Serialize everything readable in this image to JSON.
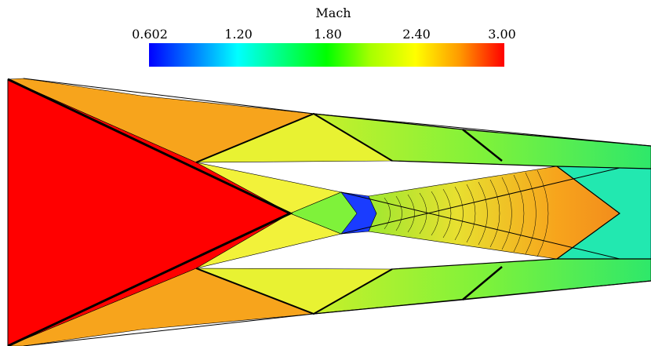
{
  "chart_data": {
    "type": "heatmap",
    "title": "",
    "colorbar": {
      "label": "Mach",
      "min": 0.602,
      "max": 3.0,
      "tick_labels": [
        "0.602",
        "1.20",
        "1.80",
        "2.40",
        "3.00"
      ],
      "tick_values": [
        0.602,
        1.2,
        1.8,
        2.4,
        3.0
      ],
      "colormap": [
        {
          "value": 0.602,
          "color": "#0000ff"
        },
        {
          "value": 1.0,
          "color": "#00a8ff"
        },
        {
          "value": 1.2,
          "color": "#00ffff"
        },
        {
          "value": 1.5,
          "color": "#00ff80"
        },
        {
          "value": 1.8,
          "color": "#00ff00"
        },
        {
          "value": 2.1,
          "color": "#a8ff00"
        },
        {
          "value": 2.4,
          "color": "#ffff00"
        },
        {
          "value": 2.7,
          "color": "#ff9900"
        },
        {
          "value": 3.0,
          "color": "#ff0000"
        }
      ]
    },
    "regions": [
      {
        "name": "freestream-wedge",
        "mach": 3.0,
        "color": "#ff0000"
      },
      {
        "name": "upper-oblique",
        "mach": 2.75,
        "color": "#f7a41c"
      },
      {
        "name": "lower-oblique",
        "mach": 2.75,
        "color": "#f7a41c"
      },
      {
        "name": "upper-reflected",
        "mach": 2.45,
        "color": "#e8f232"
      },
      {
        "name": "lower-reflected",
        "mach": 2.45,
        "color": "#e8f232"
      },
      {
        "name": "inner-upper-wedge",
        "mach": 2.35,
        "color": "#f2f23a"
      },
      {
        "name": "inner-lower-wedge",
        "mach": 2.35,
        "color": "#f2f23a"
      },
      {
        "name": "upper-channel-downstream",
        "mach": 2.0,
        "color": "#7ff23a"
      },
      {
        "name": "lower-channel-downstream",
        "mach": 2.0,
        "color": "#7ff23a"
      },
      {
        "name": "center-expansion",
        "mach": 2.3,
        "color": "#d4f02c"
      },
      {
        "name": "center-core",
        "mach": 2.55,
        "color": "#f0c420"
      },
      {
        "name": "stagnation-pocket",
        "mach": 0.8,
        "color": "#1a3cff"
      },
      {
        "name": "mixing-zone",
        "mach": 1.3,
        "color": "#22e8b0"
      }
    ]
  }
}
